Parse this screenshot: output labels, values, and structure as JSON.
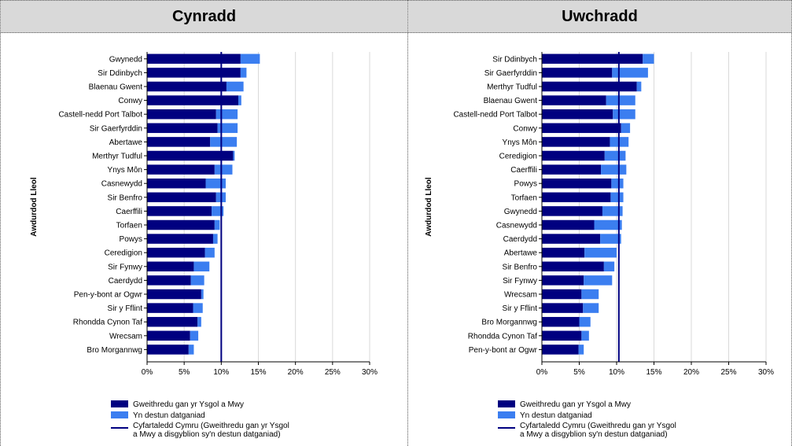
{
  "colors": {
    "primary": "#000080",
    "secondary": "#3B7EF0",
    "average_line": "#000080",
    "grid": "#d9d9d9",
    "header_bg": "#d9d9d9"
  },
  "legend": {
    "primary": "Gweithredu gan yr Ysgol a Mwy",
    "secondary": "Yn destun datganiad",
    "average_line1": "Cyfartaledd Cymru (Gweithredu gan yr Ysgol",
    "average_line2": "a Mwy a disgyblion sy'n destun datganiad)"
  },
  "chart_data": [
    {
      "type": "bar",
      "orientation": "horizontal",
      "stacked": true,
      "title": "Cynradd",
      "ylabel": "Awdurdod Lleol",
      "xlabel": "",
      "xlim": [
        0,
        30
      ],
      "xticks": [
        "0%",
        "5%",
        "10%",
        "15%",
        "20%",
        "25%",
        "30%"
      ],
      "grid": true,
      "legend_position": "bottom",
      "average": 10,
      "categories": [
        "Gwynedd",
        "Sir Ddinbych",
        "Blaenau Gwent",
        "Conwy",
        "Castell-nedd Port Talbot",
        "Sir Gaerfyrddin",
        "Abertawe",
        "Merthyr Tudful",
        "Ynys Môn",
        "Casnewydd",
        "Sir Benfro",
        "Caerffili",
        "Torfaen",
        "Powys",
        "Ceredigion",
        "Sir Fynwy",
        "Caerdydd",
        "Pen-y-bont ar Ogwr",
        "Sir y Fflint",
        "Rhondda Cynon Taf",
        "Wrecsam",
        "Bro Morgannwg"
      ],
      "series": [
        {
          "name": "Gweithredu gan yr Ysgol a Mwy",
          "values": [
            12.6,
            12.6,
            10.7,
            12.3,
            9.3,
            9.5,
            8.5,
            11.6,
            9.1,
            7.9,
            9.3,
            8.7,
            9.1,
            8.9,
            7.8,
            6.3,
            5.9,
            7.3,
            6.2,
            6.8,
            5.8,
            5.6
          ]
        },
        {
          "name": "Yn destun datganiad",
          "values": [
            2.6,
            0.8,
            2.3,
            0.4,
            2.9,
            2.7,
            3.6,
            0.2,
            2.4,
            2.7,
            1.3,
            1.6,
            0.7,
            0.6,
            1.3,
            2.1,
            1.8,
            0.3,
            1.3,
            0.5,
            1.1,
            0.7
          ]
        }
      ]
    },
    {
      "type": "bar",
      "orientation": "horizontal",
      "stacked": true,
      "title": "Uwchradd",
      "ylabel": "Awdurdod Lleol",
      "xlabel": "",
      "xlim": [
        0,
        30
      ],
      "xticks": [
        "0%",
        "5%",
        "10%",
        "15%",
        "20%",
        "25%",
        "30%"
      ],
      "grid": true,
      "legend_position": "bottom",
      "average": 10.3,
      "categories": [
        "Sir Ddinbych",
        "Sir Gaerfyrddin",
        "Merthyr Tudful",
        "Blaenau Gwent",
        "Castell-nedd Port Talbot",
        "Conwy",
        "Ynys Môn",
        "Ceredigion",
        "Caerffili",
        "Powys",
        "Torfaen",
        "Gwynedd",
        "Casnewydd",
        "Caerdydd",
        "Abertawe",
        "Sir Benfro",
        "Sir Fynwy",
        "Wrecsam",
        "Sir y Fflint",
        "Bro Morgannwg",
        "Rhondda Cynon Taf",
        "Pen-y-bont ar Ogwr"
      ],
      "series": [
        {
          "name": "Gweithredu gan yr Ysgol a Mwy",
          "values": [
            13.5,
            9.4,
            12.7,
            8.6,
            9.5,
            10.6,
            9.1,
            8.4,
            7.9,
            9.3,
            9.2,
            8.1,
            7.0,
            7.8,
            5.7,
            8.3,
            5.6,
            5.3,
            5.5,
            5.0,
            5.3,
            4.9
          ]
        },
        {
          "name": "Yn destun datganiad",
          "values": [
            1.5,
            4.8,
            0.6,
            3.9,
            3.0,
            1.2,
            2.5,
            2.8,
            3.4,
            1.6,
            1.7,
            2.7,
            3.7,
            2.8,
            4.3,
            1.4,
            3.8,
            2.3,
            2.1,
            1.5,
            1.0,
            0.7
          ]
        }
      ]
    }
  ]
}
